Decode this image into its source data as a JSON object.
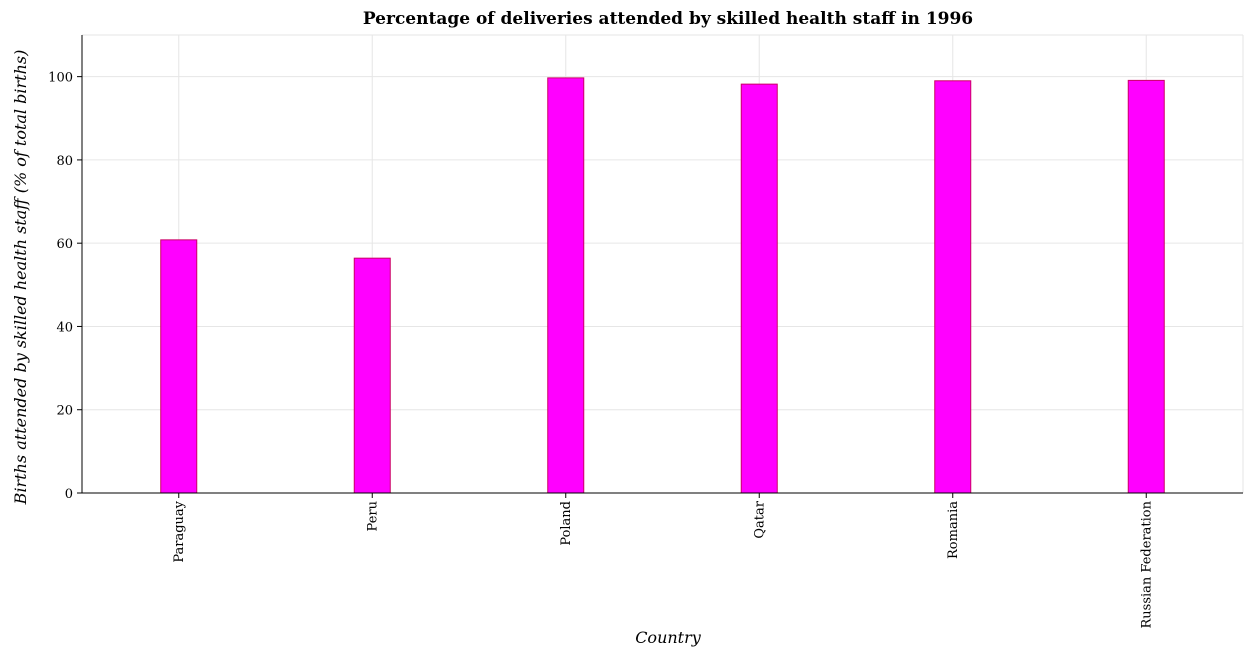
{
  "chart_data": {
    "type": "bar",
    "title": "Percentage of deliveries attended by skilled health staff in 1996",
    "xlabel": "Country",
    "ylabel": "Births attended by skilled health staff (% of total births)",
    "categories": [
      "Paraguay",
      "Peru",
      "Poland",
      "Qatar",
      "Romania",
      "Russian Federation"
    ],
    "values": [
      60.8,
      56.4,
      99.7,
      98.2,
      99.0,
      99.1
    ],
    "ylim": [
      0,
      110
    ],
    "yticks": [
      0,
      20,
      40,
      60,
      80,
      100
    ],
    "grid": true,
    "bar_color": "#ff00ff",
    "bar_edge_color": "#cc0066"
  }
}
